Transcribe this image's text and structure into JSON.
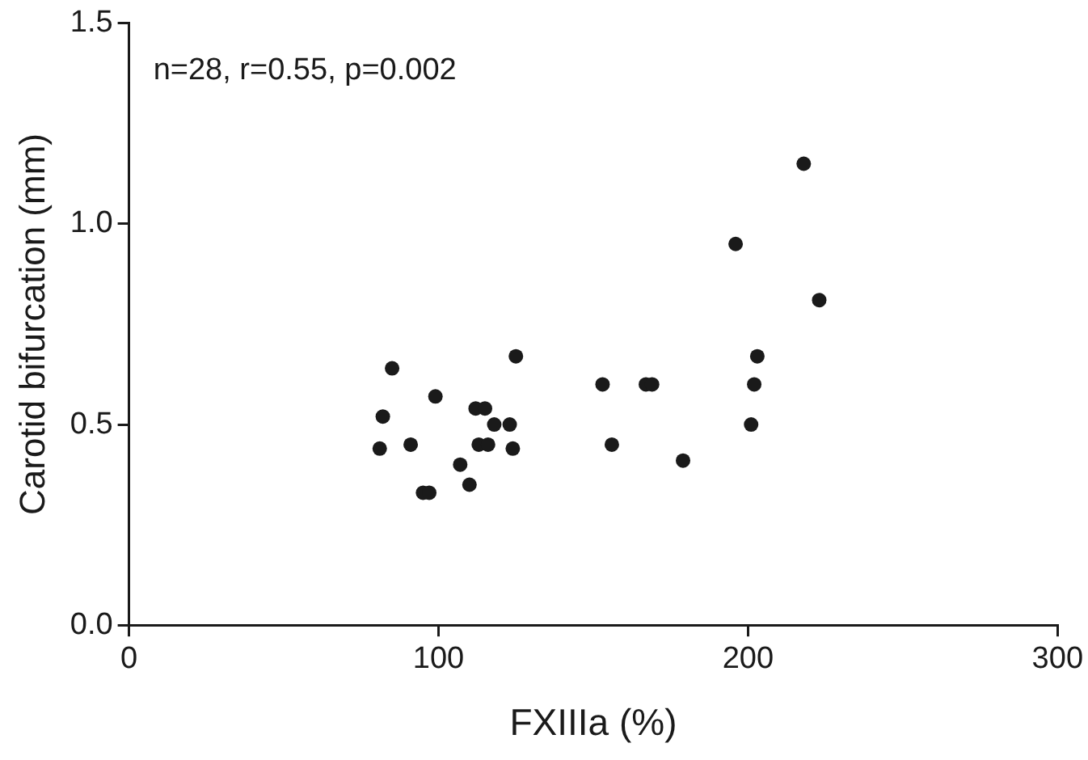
{
  "chart_data": {
    "type": "scatter",
    "xlabel": "FXIIIa (%)",
    "ylabel": "Carotid bifurcation (mm)",
    "annotations": [
      "n=28, r=0.55, p=0.002"
    ],
    "series": [
      {
        "color": "#1a1a1a",
        "x": [
          81,
          82,
          85,
          91,
          95,
          97,
          99,
          107,
          110,
          112,
          115,
          113,
          116,
          118,
          123,
          124,
          125,
          153,
          156,
          167,
          169,
          179,
          196,
          201,
          202,
          203,
          218,
          223
        ],
        "values": [
          0.44,
          0.52,
          0.64,
          0.45,
          0.33,
          0.33,
          0.57,
          0.4,
          0.35,
          0.54,
          0.54,
          0.45,
          0.45,
          0.5,
          0.5,
          0.44,
          0.67,
          0.6,
          0.45,
          0.6,
          0.6,
          0.41,
          0.95,
          0.5,
          0.6,
          0.67,
          1.15,
          0.81
        ]
      }
    ],
    "xlim": [
      0,
      300
    ],
    "xticks": [
      0,
      100,
      200,
      300
    ],
    "ylim": [
      0,
      1.5
    ],
    "yticks": [
      {
        "value": 0,
        "label": "0.0"
      },
      {
        "value": 0.5,
        "label": "0.5"
      },
      {
        "value": 1,
        "label": "1.0"
      },
      {
        "value": 1.5,
        "label": "1.5"
      }
    ],
    "grid": false,
    "legend": false,
    "marker": "circle"
  }
}
